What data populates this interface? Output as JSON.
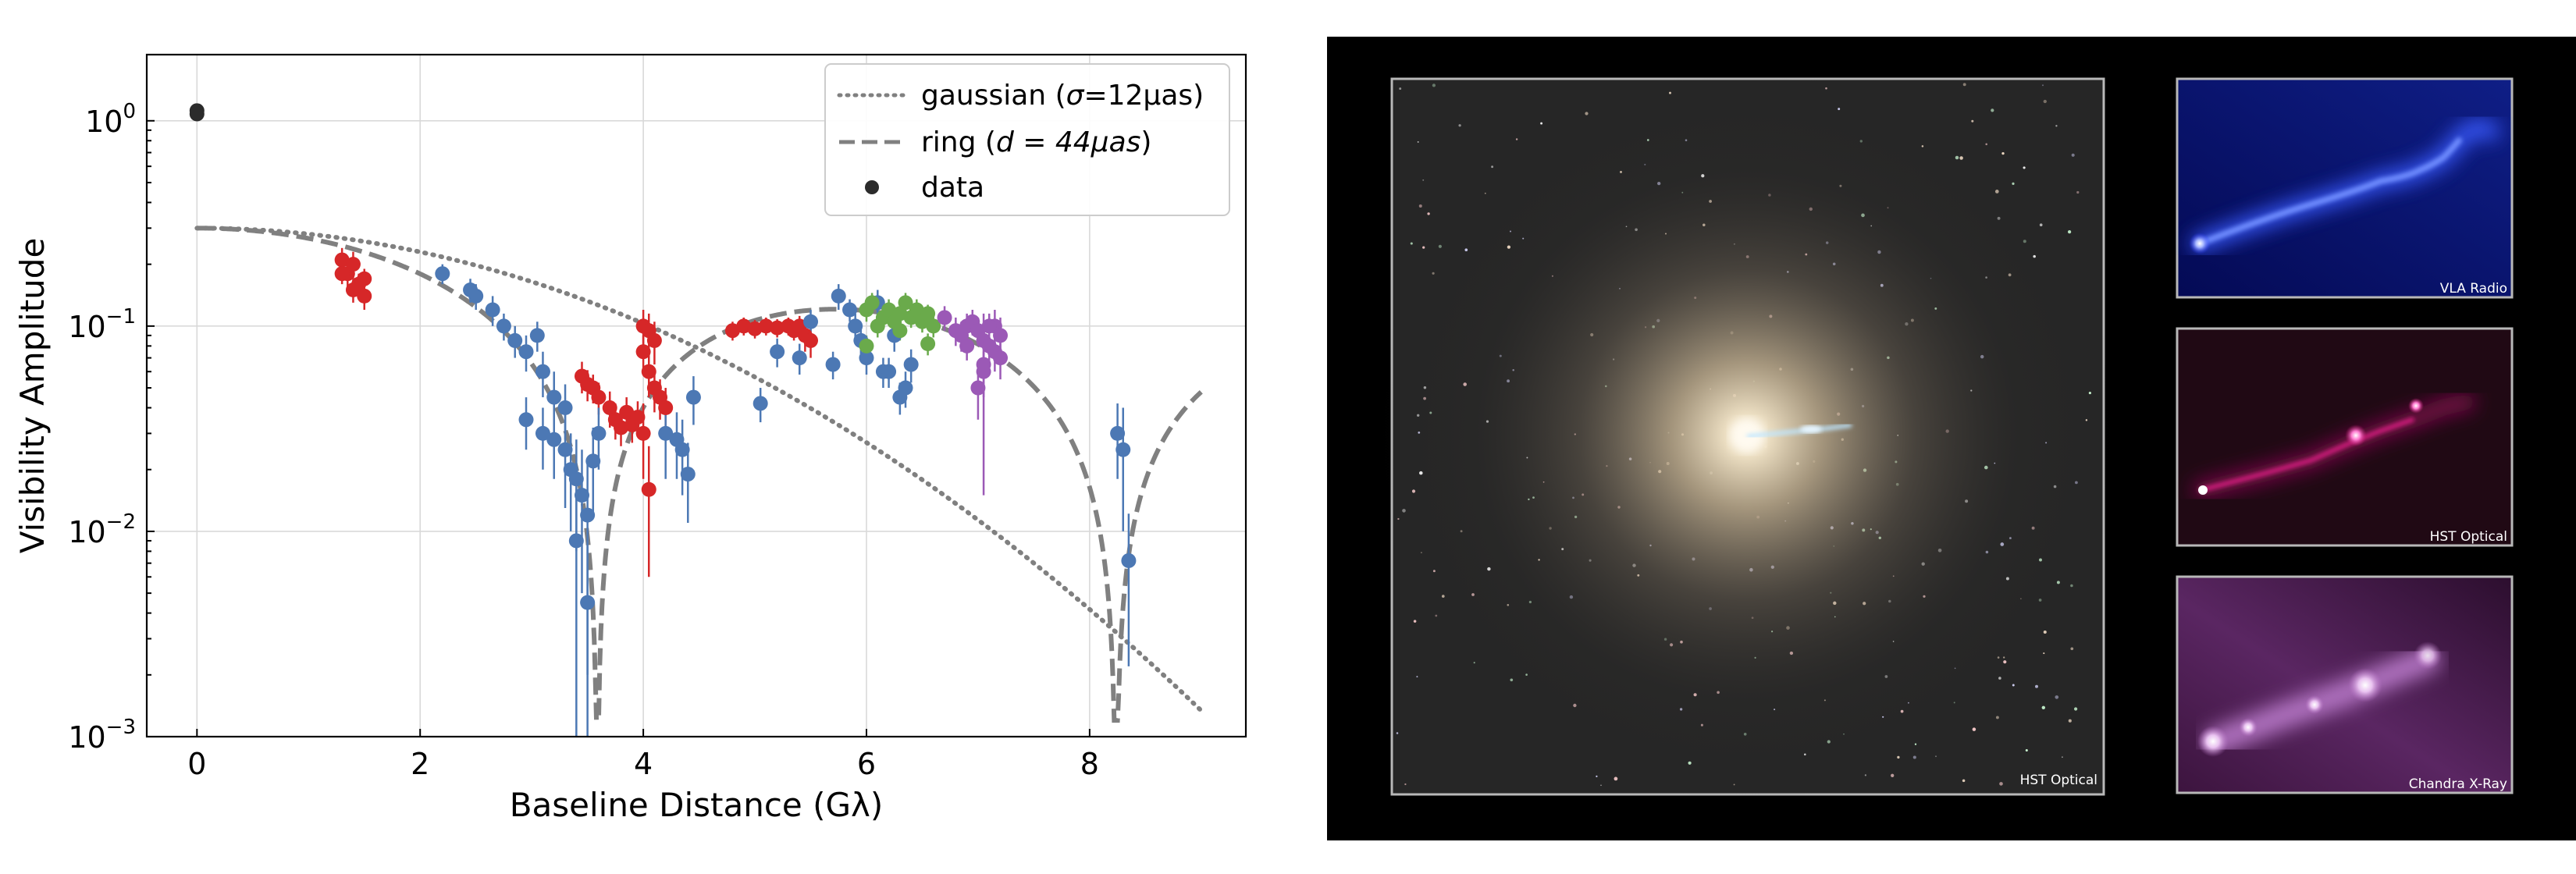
{
  "chart_data": {
    "type": "scatter",
    "xlabel": "Baseline Distance (Gλ)",
    "ylabel": "Visibility Amplitude",
    "xlim": [
      -0.45,
      9.4
    ],
    "ylim": [
      0.001,
      2.1
    ],
    "yscale": "log",
    "grid": true,
    "legend_position": "top-right",
    "x_ticks": [
      0,
      2,
      4,
      6,
      8
    ],
    "x_tick_labels": [
      "0",
      "2",
      "4",
      "6",
      "8"
    ],
    "y_ticks": [
      0.001,
      0.01,
      0.1,
      1
    ],
    "y_tick_labels": [
      {
        "base": "10",
        "exp": "−3"
      },
      {
        "base": "10",
        "exp": "−2"
      },
      {
        "base": "10",
        "exp": "−1"
      },
      {
        "base": "10",
        "exp": "0"
      }
    ],
    "legend": [
      {
        "style": "dotted",
        "text_pre": "gaussian (",
        "text_math": "σ",
        "text_post": "=12μas)"
      },
      {
        "style": "dashed",
        "text_pre": "ring (",
        "text_math": "d = 44μas",
        "text_post": ")"
      },
      {
        "style": "marker",
        "text_pre": "data",
        "text_math": "",
        "text_post": ""
      }
    ],
    "models": [
      {
        "key": "gaussian",
        "style": "dotted",
        "sigma_uas": 12,
        "y0": 0.3
      },
      {
        "key": "ring",
        "style": "dashed",
        "d_uas": 44,
        "y0": 0.3
      }
    ],
    "series": [
      {
        "color": "#2b2b2b",
        "points": [
          [
            0.0,
            1.12,
            0.07
          ],
          [
            0.0,
            1.08,
            0.05
          ]
        ]
      },
      {
        "color": "#d62728",
        "points": [
          [
            1.3,
            0.21,
            0.03
          ],
          [
            1.35,
            0.18,
            0.03
          ],
          [
            1.4,
            0.2,
            0.03
          ],
          [
            1.45,
            0.16,
            0.02
          ],
          [
            1.5,
            0.17,
            0.02
          ],
          [
            1.5,
            0.14,
            0.02
          ],
          [
            1.3,
            0.18,
            0.02
          ],
          [
            1.4,
            0.15,
            0.02
          ],
          [
            3.45,
            0.057,
            0.01
          ],
          [
            3.5,
            0.052,
            0.009
          ],
          [
            3.55,
            0.05,
            0.008
          ],
          [
            3.6,
            0.045,
            0.008
          ],
          [
            3.7,
            0.04,
            0.008
          ],
          [
            3.75,
            0.035,
            0.007
          ],
          [
            3.8,
            0.032,
            0.006
          ],
          [
            3.85,
            0.038,
            0.007
          ],
          [
            3.9,
            0.033,
            0.006
          ],
          [
            3.95,
            0.036,
            0.007
          ],
          [
            4.0,
            0.1,
            0.02
          ],
          [
            4.05,
            0.095,
            0.02
          ],
          [
            4.1,
            0.085,
            0.02
          ],
          [
            4.0,
            0.075,
            0.015
          ],
          [
            4.05,
            0.06,
            0.015
          ],
          [
            4.1,
            0.05,
            0.012
          ],
          [
            4.15,
            0.045,
            0.01
          ],
          [
            4.2,
            0.04,
            0.01
          ],
          [
            4.0,
            0.03,
            0.012
          ],
          [
            4.05,
            0.016,
            0.01
          ],
          [
            4.8,
            0.095,
            0.01
          ],
          [
            4.9,
            0.1,
            0.01
          ],
          [
            5.0,
            0.097,
            0.01
          ],
          [
            5.1,
            0.1,
            0.01
          ],
          [
            5.2,
            0.098,
            0.01
          ],
          [
            5.3,
            0.1,
            0.01
          ],
          [
            5.35,
            0.095,
            0.01
          ],
          [
            5.4,
            0.1,
            0.012
          ],
          [
            5.45,
            0.09,
            0.015
          ],
          [
            5.5,
            0.085,
            0.015
          ]
        ]
      },
      {
        "color": "#4c78b4",
        "points": [
          [
            2.2,
            0.18,
            0.02
          ],
          [
            2.45,
            0.15,
            0.02
          ],
          [
            2.5,
            0.14,
            0.02
          ],
          [
            2.65,
            0.12,
            0.02
          ],
          [
            2.75,
            0.1,
            0.015
          ],
          [
            2.85,
            0.085,
            0.015
          ],
          [
            2.95,
            0.075,
            0.015
          ],
          [
            3.05,
            0.09,
            0.015
          ],
          [
            3.1,
            0.06,
            0.015
          ],
          [
            2.95,
            0.035,
            0.01
          ],
          [
            3.1,
            0.03,
            0.01
          ],
          [
            3.2,
            0.028,
            0.01
          ],
          [
            3.3,
            0.025,
            0.012
          ],
          [
            3.35,
            0.02,
            0.01
          ],
          [
            3.4,
            0.018,
            0.01
          ],
          [
            3.45,
            0.015,
            0.01
          ],
          [
            3.5,
            0.012,
            0.01
          ],
          [
            3.4,
            0.009,
            0.008
          ],
          [
            3.5,
            0.0045,
            0.004
          ],
          [
            3.55,
            0.022,
            0.01
          ],
          [
            3.6,
            0.03,
            0.01
          ],
          [
            3.2,
            0.045,
            0.015
          ],
          [
            3.3,
            0.04,
            0.012
          ],
          [
            4.2,
            0.03,
            0.012
          ],
          [
            4.3,
            0.028,
            0.01
          ],
          [
            4.35,
            0.025,
            0.01
          ],
          [
            4.4,
            0.019,
            0.008
          ],
          [
            4.45,
            0.045,
            0.012
          ],
          [
            5.05,
            0.042,
            0.008
          ],
          [
            5.2,
            0.075,
            0.012
          ],
          [
            5.4,
            0.07,
            0.012
          ],
          [
            5.5,
            0.105,
            0.015
          ],
          [
            5.7,
            0.065,
            0.01
          ],
          [
            5.75,
            0.14,
            0.02
          ],
          [
            5.85,
            0.12,
            0.015
          ],
          [
            5.9,
            0.1,
            0.015
          ],
          [
            5.95,
            0.085,
            0.012
          ],
          [
            6.0,
            0.07,
            0.012
          ],
          [
            6.1,
            0.13,
            0.02
          ],
          [
            6.15,
            0.06,
            0.01
          ],
          [
            6.2,
            0.06,
            0.01
          ],
          [
            6.25,
            0.09,
            0.015
          ],
          [
            6.3,
            0.045,
            0.008
          ],
          [
            6.35,
            0.05,
            0.01
          ],
          [
            6.4,
            0.065,
            0.012
          ],
          [
            8.25,
            0.03,
            0.012
          ],
          [
            8.3,
            0.025,
            0.015
          ],
          [
            8.35,
            0.0072,
            0.005
          ]
        ]
      },
      {
        "color": "#6aaa4b",
        "points": [
          [
            6.0,
            0.12,
            0.015
          ],
          [
            6.05,
            0.13,
            0.015
          ],
          [
            6.1,
            0.1,
            0.012
          ],
          [
            6.15,
            0.11,
            0.012
          ],
          [
            6.2,
            0.12,
            0.015
          ],
          [
            6.25,
            0.105,
            0.012
          ],
          [
            6.3,
            0.115,
            0.012
          ],
          [
            6.35,
            0.13,
            0.015
          ],
          [
            6.4,
            0.11,
            0.012
          ],
          [
            6.45,
            0.12,
            0.015
          ],
          [
            6.5,
            0.105,
            0.012
          ],
          [
            6.55,
            0.115,
            0.012
          ],
          [
            6.6,
            0.1,
            0.012
          ],
          [
            6.0,
            0.08,
            0.01
          ],
          [
            6.3,
            0.095,
            0.01
          ],
          [
            6.55,
            0.082,
            0.01
          ]
        ]
      },
      {
        "color": "#9b59b6",
        "points": [
          [
            6.7,
            0.11,
            0.015
          ],
          [
            6.8,
            0.095,
            0.015
          ],
          [
            6.85,
            0.09,
            0.015
          ],
          [
            6.9,
            0.1,
            0.015
          ],
          [
            6.95,
            0.105,
            0.015
          ],
          [
            7.0,
            0.095,
            0.015
          ],
          [
            7.05,
            0.085,
            0.015
          ],
          [
            7.1,
            0.08,
            0.015
          ],
          [
            7.15,
            0.075,
            0.015
          ],
          [
            7.2,
            0.07,
            0.015
          ],
          [
            7.0,
            0.05,
            0.015
          ],
          [
            7.05,
            0.06,
            0.015
          ],
          [
            7.15,
            0.1,
            0.02
          ],
          [
            7.2,
            0.09,
            0.02
          ],
          [
            6.9,
            0.08,
            0.012
          ],
          [
            7.1,
            0.1,
            0.015
          ],
          [
            7.05,
            0.065,
            0.05
          ]
        ]
      }
    ]
  },
  "panels": {
    "main_label": "HST Optical",
    "insets": [
      {
        "key": "vla",
        "label": "VLA Radio"
      },
      {
        "key": "hst",
        "label": "HST Optical"
      },
      {
        "key": "chandra",
        "label": "Chandra X-Ray"
      }
    ]
  }
}
